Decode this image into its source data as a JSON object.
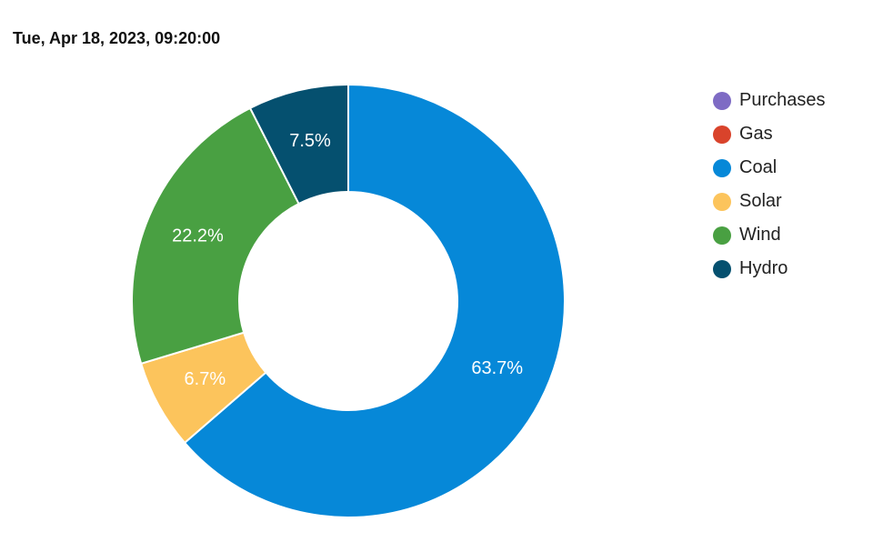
{
  "chart_data": {
    "type": "pie",
    "title": "Tue, Apr 18, 2023, 09:20:00",
    "donut": true,
    "legend_position": "right",
    "series": [
      {
        "name": "Purchases",
        "value": 0,
        "label": "",
        "color": "#7e6bc4"
      },
      {
        "name": "Gas",
        "value": 0,
        "label": "",
        "color": "#d9432b"
      },
      {
        "name": "Coal",
        "value": 63.7,
        "label": "63.7%",
        "color": "#0688d8"
      },
      {
        "name": "Solar",
        "value": 6.7,
        "label": "6.7%",
        "color": "#fcc45c"
      },
      {
        "name": "Wind",
        "value": 22.2,
        "label": "22.2%",
        "color": "#49a042"
      },
      {
        "name": "Hydro",
        "value": 7.5,
        "label": "7.5%",
        "color": "#05506f"
      }
    ]
  }
}
